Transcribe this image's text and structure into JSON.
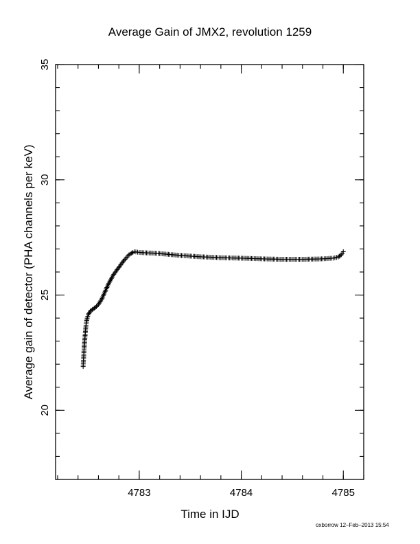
{
  "chart_data": {
    "type": "scatter",
    "title": "Average Gain of JMX2, revolution 1259",
    "xlabel": "Time in IJD",
    "ylabel": "Average gain of detector (PHA channels per keV)",
    "xlim": [
      4782.18,
      4785.2
    ],
    "ylim": [
      17,
      35
    ],
    "xticks": [
      4783,
      4784,
      4785
    ],
    "yticks": [
      20,
      25,
      30,
      35
    ],
    "x_minor_step": 0.2,
    "y_minor_step": 1,
    "marker": "plus",
    "grid": false,
    "series": [
      {
        "points": [
          [
            4782.45,
            21.9
          ],
          [
            4782.455,
            22.3
          ],
          [
            4782.46,
            22.7
          ],
          [
            4782.465,
            23.0
          ],
          [
            4782.47,
            23.3
          ],
          [
            4782.475,
            23.55
          ],
          [
            4782.48,
            23.75
          ],
          [
            4782.485,
            23.9
          ],
          [
            4782.49,
            24.0
          ],
          [
            4782.5,
            24.15
          ],
          [
            4782.52,
            24.3
          ],
          [
            4782.55,
            24.4
          ],
          [
            4782.58,
            24.5
          ],
          [
            4782.6,
            24.6
          ],
          [
            4782.63,
            24.8
          ],
          [
            4782.66,
            25.1
          ],
          [
            4782.7,
            25.5
          ],
          [
            4782.75,
            25.9
          ],
          [
            4782.8,
            26.2
          ],
          [
            4782.85,
            26.5
          ],
          [
            4782.9,
            26.75
          ],
          [
            4782.95,
            26.88
          ],
          [
            4783.0,
            26.85
          ],
          [
            4783.2,
            26.8
          ],
          [
            4783.4,
            26.72
          ],
          [
            4783.6,
            26.66
          ],
          [
            4783.8,
            26.62
          ],
          [
            4784.0,
            26.6
          ],
          [
            4784.2,
            26.57
          ],
          [
            4784.4,
            26.55
          ],
          [
            4784.6,
            26.55
          ],
          [
            4784.8,
            26.57
          ],
          [
            4784.9,
            26.6
          ],
          [
            4784.95,
            26.65
          ],
          [
            4784.98,
            26.75
          ],
          [
            4785.0,
            26.88
          ]
        ]
      }
    ]
  },
  "footer": "oxborrow 12–Feb–2013 15:54"
}
